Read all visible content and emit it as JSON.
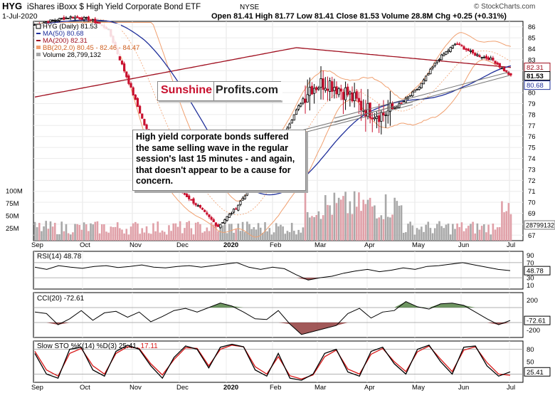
{
  "header": {
    "symbol": "HYG",
    "description": "iShares iBoxx $ High Yield Corporate Bond ETF",
    "exchange": "NYSE",
    "date": "1-Jul-2020",
    "ohlc_text": "Open 81.41  High 81.77  Low 81.41  Close 81.53  Volume 28.8M  Chg +0.25 (+0.31%)",
    "watermark": "© StockCharts.com"
  },
  "legend": {
    "main": "HYG (Daily) 81.53",
    "ma50": "MA(50) 80.68",
    "ma200": "MA(200) 82.31",
    "bb": "BB(20,2.0) 80.45 - 82.46 - 84.47",
    "volume": "Volume 28,799,132"
  },
  "brand": {
    "part1": "Sunshine",
    "part2": "Profits.com"
  },
  "annotation": "High yield corporate bonds suffered the same selling wave in the regular session's last 15 minutes - and again, that doesn't appear to be a cause for concern.",
  "colors": {
    "price_up": "#000000",
    "price_down": "#c8102e",
    "ma50": "#1f2f9a",
    "ma200": "#a01020",
    "bollinger": "#f0a070",
    "volume_up": "#a8a8a8",
    "volume_down": "#e0a0a8",
    "signal": "#d81818"
  },
  "chart_data": [
    {
      "type": "candlestick",
      "title": "HYG (Daily) 81.53",
      "x_tick_labels": [
        "Sep",
        "Oct",
        "Nov",
        "Dec",
        "2020",
        "Feb",
        "Mar",
        "Apr",
        "May",
        "Jun",
        "Jul"
      ],
      "y_tick_labels": [
        "86",
        "85",
        "84",
        "83",
        "82",
        "81",
        "80",
        "79",
        "78",
        "77",
        "76",
        "75",
        "74",
        "73",
        "72",
        "71",
        "70",
        "69",
        "68",
        "67"
      ],
      "last_value_labels": [
        "82.31",
        "81.53",
        "80.68"
      ],
      "ylim": [
        66.5,
        86.5
      ],
      "close": [
        86.2,
        86.6,
        86.9,
        86.7,
        85.8,
        81.5,
        77.0,
        73.5,
        71.0,
        69.5,
        67.8,
        69.5,
        72.0,
        74.5,
        77.5,
        80.5,
        81.0,
        80.0,
        78.5,
        78.0,
        79.0,
        80.5,
        83.0,
        84.5,
        83.5,
        83.0,
        81.5
      ],
      "series": [
        {
          "name": "MA(50) 80.68"
        },
        {
          "name": "MA(200) 82.31"
        },
        {
          "name": "BB(20,2.0) 80.45 - 82.46 - 84.47"
        }
      ]
    },
    {
      "type": "bar",
      "title": "Volume 28,799,132",
      "y_tick_labels": [
        "100M",
        "75M",
        "50M",
        "25M"
      ],
      "last_value_label": "28799132"
    },
    {
      "type": "line",
      "title": "RSI(14) 48.78",
      "y_tick_labels": [
        "90",
        "70",
        "50",
        "30",
        "10"
      ],
      "last_value_label": "48.78",
      "values": [
        58,
        52,
        62,
        58,
        55,
        60,
        62,
        57,
        60,
        64,
        58,
        56,
        60,
        62,
        58,
        62,
        66,
        70,
        58,
        52,
        58,
        54,
        38,
        24,
        30,
        34,
        42,
        48,
        52,
        46,
        50,
        56,
        52,
        60,
        62,
        66,
        70,
        64,
        58,
        52,
        48.78
      ]
    },
    {
      "type": "line",
      "title": "CCI(20) -72.61",
      "y_tick_labels": [
        "200",
        "-72.61",
        "-200"
      ],
      "last_value_label": "-72.61",
      "values": [
        40,
        20,
        -130,
        -50,
        60,
        -70,
        30,
        50,
        -30,
        40,
        -90,
        -20,
        60,
        90,
        40,
        100,
        160,
        120,
        40,
        -50,
        -60,
        60,
        -120,
        -260,
        -220,
        -180,
        -140,
        20,
        90,
        -40,
        40,
        60,
        180,
        110,
        80,
        150,
        160,
        130,
        40,
        -50,
        -130,
        -72.61
      ]
    },
    {
      "type": "line",
      "title": "Slow STO %K(14) %D(3) 25.41, 17.11",
      "y_tick_labels": [
        "80",
        "50",
        "25.41"
      ],
      "last_value_label": "25.41",
      "series": [
        {
          "name": "%K(14)",
          "values": [
            70,
            20,
            10,
            80,
            85,
            30,
            15,
            75,
            90,
            80,
            40,
            10,
            60,
            88,
            80,
            35,
            85,
            92,
            86,
            30,
            15,
            70,
            10,
            5,
            20,
            70,
            80,
            25,
            15,
            75,
            85,
            45,
            20,
            80,
            90,
            50,
            20,
            85,
            88,
            40,
            15,
            25.41
          ]
        },
        {
          "name": "%D(3)",
          "values": [
            75,
            30,
            15,
            70,
            82,
            40,
            20,
            70,
            86,
            82,
            45,
            18,
            55,
            84,
            82,
            40,
            80,
            90,
            86,
            38,
            20,
            62,
            16,
            8,
            18,
            62,
            78,
            32,
            20,
            68,
            82,
            50,
            26,
            74,
            88,
            56,
            26,
            78,
            86,
            48,
            20,
            17.11
          ]
        }
      ]
    }
  ]
}
